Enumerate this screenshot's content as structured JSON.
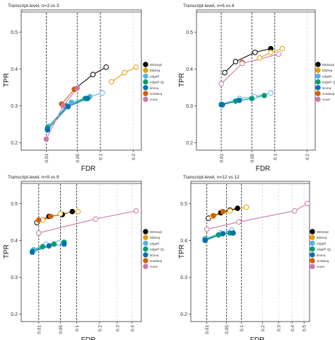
{
  "figure": {
    "legend_labels": [
      "DESeq2",
      "EBSeq",
      "edgeR",
      "edgeR QL",
      "limma",
      "SAMseq",
      "voom"
    ],
    "colors": {
      "DESeq2": "#000000",
      "EBSeq": "#E69F00",
      "edgeR": "#56B4E9",
      "edgeR QL": "#009E73",
      "limma": "#0072B2",
      "SAMseq": "#D55E00",
      "voom": "#CC79A7"
    }
  },
  "chart_data": [
    {
      "type": "line",
      "title": "Transcript-level, n=3 vs 3",
      "xlabel": "FDR",
      "ylabel": "TPR",
      "x_scale": "sqrt",
      "xlim": [
        0,
        0.23
      ],
      "ylim": [
        0.18,
        0.56
      ],
      "x_ticks": [
        0.01,
        0.05,
        0.1,
        0.2
      ],
      "y_ticks": [
        0.2,
        0.3,
        0.4,
        0.5
      ],
      "fdr_thresholds": [
        0.01,
        0.05,
        0.1
      ],
      "grid": true,
      "legend": "right",
      "series": [
        {
          "name": "DESeq2",
          "points": [
            [
              0.045,
              0.345
            ],
            [
              0.082,
              0.385
            ],
            [
              0.115,
              0.405
            ]
          ],
          "open": [
            true,
            true,
            true
          ]
        },
        {
          "name": "EBSeq",
          "points": [
            [
              0.13,
              0.365
            ],
            [
              0.17,
              0.39
            ],
            [
              0.21,
              0.405
            ]
          ],
          "open": [
            true,
            true,
            true
          ]
        },
        {
          "name": "edgeR",
          "points": [
            [
              0.012,
              0.245
            ],
            [
              0.04,
              0.31
            ],
            [
              0.075,
              0.325
            ],
            [
              0.105,
              0.335
            ]
          ],
          "open": [
            false,
            false,
            false,
            true
          ]
        },
        {
          "name": "edgeR QL",
          "points": [
            [
              0.011,
              0.24
            ],
            [
              0.033,
              0.3
            ],
            [
              0.065,
              0.32
            ]
          ],
          "open": [
            false,
            false,
            false
          ]
        },
        {
          "name": "limma",
          "points": [
            [
              0.011,
              0.235
            ],
            [
              0.035,
              0.298
            ],
            [
              0.07,
              0.32
            ]
          ],
          "open": [
            false,
            false,
            false
          ]
        },
        {
          "name": "SAMseq",
          "points": [
            [
              0.026,
              0.305
            ],
            [
              0.045,
              0.345
            ]
          ],
          "open": [
            false,
            false
          ]
        },
        {
          "name": "voom",
          "points": [
            [
              0.01,
              0.21
            ],
            [
              0.028,
              0.3
            ],
            [
              0.05,
              0.348
            ]
          ],
          "open": [
            false,
            false,
            false
          ]
        }
      ]
    },
    {
      "type": "line",
      "title": "Transcript-level, n=6 vs 6",
      "xlabel": "FDR",
      "ylabel": "TPR",
      "x_scale": "sqrt",
      "xlim": [
        0,
        0.23
      ],
      "ylim": [
        0.18,
        0.56
      ],
      "x_ticks": [
        0.01,
        0.05,
        0.1,
        0.2
      ],
      "y_ticks": [
        0.2,
        0.3,
        0.4,
        0.5
      ],
      "fdr_thresholds": [
        0.01,
        0.05,
        0.1
      ],
      "grid": true,
      "legend": "right",
      "series": [
        {
          "name": "DESeq2",
          "points": [
            [
              0.013,
              0.39
            ],
            [
              0.025,
              0.42
            ],
            [
              0.056,
              0.445
            ],
            [
              0.09,
              0.455
            ]
          ],
          "open": [
            true,
            true,
            true,
            false
          ]
        },
        {
          "name": "EBSeq",
          "points": [
            [
              0.065,
              0.43
            ],
            [
              0.09,
              0.445
            ],
            [
              0.12,
              0.455
            ]
          ],
          "open": [
            true,
            true,
            true
          ]
        },
        {
          "name": "edgeR",
          "points": [
            [
              0.01,
              0.305
            ],
            [
              0.03,
              0.32
            ],
            [
              0.055,
              0.325
            ],
            [
              0.09,
              0.335
            ]
          ],
          "open": [
            true,
            true,
            true,
            true
          ]
        },
        {
          "name": "edgeR QL",
          "points": [
            [
              0.01,
              0.303
            ],
            [
              0.025,
              0.313
            ],
            [
              0.05,
              0.32
            ],
            [
              0.075,
              0.328
            ]
          ],
          "open": [
            false,
            false,
            false,
            false
          ]
        },
        {
          "name": "limma",
          "points": [
            [
              0.011,
              0.303
            ],
            [
              0.03,
              0.315
            ]
          ],
          "open": [
            false,
            false
          ]
        },
        {
          "name": "SAMseq",
          "points": [
            [
              0.034,
              0.418
            ]
          ],
          "open": [
            false
          ]
        },
        {
          "name": "voom",
          "points": [
            [
              0.01,
              0.36
            ],
            [
              0.034,
              0.415
            ],
            [
              0.11,
              0.44
            ]
          ],
          "open": [
            true,
            true,
            true
          ]
        }
      ]
    },
    {
      "type": "line",
      "title": "Transcript-level, n=9 vs 9",
      "xlabel": "FDR",
      "ylabel": "TPR",
      "x_scale": "sqrt",
      "xlim": [
        0,
        0.47
      ],
      "ylim": [
        0.18,
        0.56
      ],
      "x_ticks": [
        0.01,
        0.05,
        0.1,
        0.2,
        0.3,
        0.4
      ],
      "y_ticks": [
        0.2,
        0.3,
        0.4,
        0.5
      ],
      "fdr_thresholds": [
        0.01,
        0.05,
        0.1
      ],
      "grid": true,
      "legend": "right",
      "series": [
        {
          "name": "DESeq2",
          "points": [
            [
              0.008,
              0.448
            ],
            [
              0.025,
              0.465
            ],
            [
              0.055,
              0.47
            ],
            [
              0.085,
              0.478
            ]
          ],
          "open": [
            true,
            false,
            false,
            false
          ]
        },
        {
          "name": "EBSeq",
          "points": [
            [
              0.015,
              0.455
            ],
            [
              0.05,
              0.472
            ],
            [
              0.105,
              0.478
            ]
          ],
          "open": [
            true,
            true,
            true
          ]
        },
        {
          "name": "edgeR",
          "points": [
            [
              0.005,
              0.375
            ],
            [
              0.02,
              0.39
            ],
            [
              0.045,
              0.393
            ]
          ],
          "open": [
            false,
            true,
            true
          ]
        },
        {
          "name": "edgeR QL",
          "points": [
            [
              0.004,
              0.37
            ],
            [
              0.015,
              0.383
            ],
            [
              0.035,
              0.39
            ],
            [
              0.06,
              0.395
            ]
          ],
          "open": [
            false,
            false,
            false,
            false
          ]
        },
        {
          "name": "limma",
          "points": [
            [
              0.004,
              0.368
            ],
            [
              0.025,
              0.385
            ],
            [
              0.06,
              0.39
            ]
          ],
          "open": [
            false,
            false,
            false
          ]
        },
        {
          "name": "SAMseq",
          "points": [
            [
              0.01,
              0.455
            ],
            [
              0.028,
              0.465
            ]
          ],
          "open": [
            false,
            false
          ]
        },
        {
          "name": "voom",
          "points": [
            [
              0.01,
              0.42
            ],
            [
              0.18,
              0.458
            ],
            [
              0.43,
              0.48
            ]
          ],
          "open": [
            true,
            true,
            true
          ]
        }
      ]
    },
    {
      "type": "line",
      "title": "Transcript-level, n=12 vs 12",
      "xlabel": "FDR",
      "ylabel": "TPR",
      "x_scale": "sqrt",
      "xlim": [
        0,
        0.55
      ],
      "ylim": [
        0.18,
        0.56
      ],
      "x_ticks": [
        0.01,
        0.05,
        0.1,
        0.2,
        0.3,
        0.4,
        0.5
      ],
      "y_ticks": [
        0.2,
        0.3,
        0.4,
        0.5
      ],
      "fdr_thresholds": [
        0.01,
        0.05,
        0.1
      ],
      "grid": true,
      "legend": "right",
      "series": [
        {
          "name": "DESeq2",
          "points": [
            [
              0.012,
              0.46
            ],
            [
              0.035,
              0.475
            ],
            [
              0.06,
              0.482
            ],
            [
              0.085,
              0.487
            ]
          ],
          "open": [
            true,
            false,
            false,
            false
          ]
        },
        {
          "name": "EBSeq",
          "points": [
            [
              0.018,
              0.465
            ],
            [
              0.06,
              0.48
            ],
            [
              0.12,
              0.49
            ]
          ],
          "open": [
            true,
            true,
            true
          ]
        },
        {
          "name": "edgeR",
          "points": [
            [
              0.008,
              0.405
            ],
            [
              0.035,
              0.42
            ],
            [
              0.065,
              0.428
            ]
          ],
          "open": [
            true,
            true,
            true
          ]
        },
        {
          "name": "edgeR QL",
          "points": [
            [
              0.008,
              0.402
            ],
            [
              0.03,
              0.415
            ],
            [
              0.06,
              0.42
            ]
          ],
          "open": [
            false,
            false,
            false
          ]
        },
        {
          "name": "limma",
          "points": [
            [
              0.008,
              0.4
            ],
            [
              0.04,
              0.418
            ],
            [
              0.07,
              0.42
            ]
          ],
          "open": [
            false,
            false,
            false
          ]
        },
        {
          "name": "SAMseq",
          "points": [
            [
              0.02,
              0.467
            ],
            [
              0.04,
              0.478
            ]
          ],
          "open": [
            false,
            false
          ]
        },
        {
          "name": "voom",
          "points": [
            [
              0.01,
              0.43
            ],
            [
              0.09,
              0.45
            ],
            [
              0.42,
              0.48
            ],
            [
              0.53,
              0.5
            ]
          ],
          "open": [
            true,
            true,
            true,
            true
          ]
        }
      ]
    }
  ]
}
